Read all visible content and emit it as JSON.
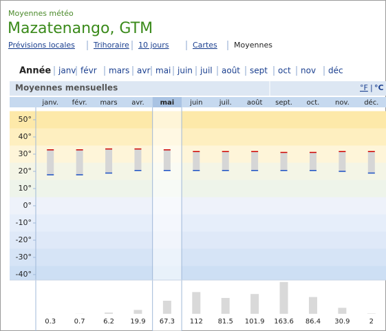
{
  "header": {
    "subtitle": "Moyennes météo",
    "title": "Mazatenango, GTM"
  },
  "nav": [
    "Prévisions locales",
    "Trihoraire",
    "10 jours",
    "Cartes",
    "Moyennes"
  ],
  "months_nav": [
    "Année",
    "janv",
    "févr",
    "mars",
    "avr",
    "mai",
    "juin",
    "juil",
    "août",
    "sept",
    "oct",
    "nov",
    "déc"
  ],
  "panel": {
    "title": "Moyennes mensuelles",
    "unit_f": "°F",
    "unit_c": "°C"
  },
  "chart_data": [
    {
      "type": "range",
      "categories": [
        "janv.",
        "févr.",
        "mars",
        "avr.",
        "mai",
        "juin",
        "juil.",
        "août",
        "sept.",
        "oct.",
        "nov.",
        "déc."
      ],
      "series": [
        {
          "name": "max",
          "color": "#cc0000",
          "values": [
            32.5,
            32.5,
            33,
            33,
            32.5,
            31.5,
            31.5,
            31.5,
            31,
            31,
            31.5,
            31.5
          ]
        },
        {
          "name": "min",
          "color": "#1a4fc4",
          "values": [
            18,
            18,
            19,
            20.5,
            20.5,
            20.5,
            20.5,
            20.5,
            20.5,
            20.5,
            20,
            19
          ]
        }
      ],
      "ylim": [
        -43,
        55
      ],
      "yticks": [
        {
          "value": 50,
          "label": "50°"
        },
        {
          "value": 40,
          "label": "40°"
        },
        {
          "value": 30,
          "label": "30°"
        },
        {
          "value": 20,
          "label": "20°"
        },
        {
          "value": 10,
          "label": "10°"
        },
        {
          "value": 0,
          "label": "0°"
        },
        {
          "value": -10,
          "label": "-10°"
        },
        {
          "value": -20,
          "label": "-20°"
        },
        {
          "value": -30,
          "label": "-30°"
        },
        {
          "value": -40,
          "label": "-40°"
        }
      ]
    },
    {
      "type": "bar",
      "color": "#d9d9d9",
      "values": [
        0.3,
        0.7,
        6.2,
        19.9,
        67.3,
        112,
        81.5,
        101.9,
        163.6,
        86.4,
        30.9,
        2
      ],
      "ylim": [
        0,
        170
      ]
    }
  ]
}
